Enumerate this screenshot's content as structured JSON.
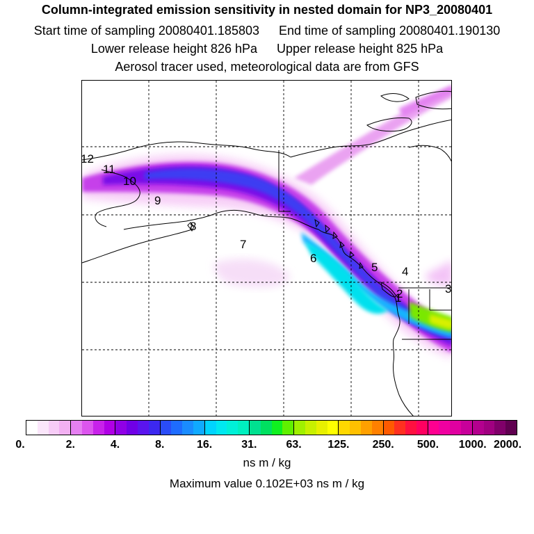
{
  "header": {
    "title": "Column-integrated emission sensitivity in nested domain for NP3_20080401",
    "start_label": "Start time of sampling 20080401.185803",
    "end_label": "End time of sampling 20080401.190130",
    "lower_label": "Lower release height  826 hPa",
    "upper_label": "Upper release height  825 hPa",
    "tracer_label": "Aerosol tracer used, meteorological data are from GFS"
  },
  "map": {
    "release_points": [
      "1",
      "2",
      "3",
      "4",
      "5",
      "6",
      "7",
      "8",
      "9",
      "10",
      "11",
      "12"
    ],
    "coastline_color": "#000000",
    "grid_style": "dashed"
  },
  "colorbar": {
    "labels": [
      "0.",
      "2.",
      "4.",
      "8.",
      "16.",
      "31.",
      "63.",
      "125.",
      "250.",
      "500.",
      "1000.",
      "2000."
    ],
    "colors": [
      "#ffffff",
      "#fbe6fb",
      "#f7ccf7",
      "#f2b0f2",
      "#e680f2",
      "#dc55ee",
      "#c822ea",
      "#b000e6",
      "#9000e6",
      "#7000e6",
      "#5a14ee",
      "#3c28f0",
      "#2a4cf8",
      "#1e6cff",
      "#1a8cff",
      "#10aaff",
      "#00d4ff",
      "#00e8f0",
      "#00f0d8",
      "#00f0c0",
      "#00e090",
      "#00e060",
      "#10f020",
      "#60f000",
      "#a0f000",
      "#c8f000",
      "#e8f000",
      "#ffff00",
      "#ffd800",
      "#ffc000",
      "#ffa000",
      "#ff8000",
      "#ff5a00",
      "#ff3020",
      "#ff1040",
      "#ff0060",
      "#ff0090",
      "#f000a0",
      "#e000a0",
      "#c8009a",
      "#b4008e",
      "#a00080",
      "#80006a",
      "#600050"
    ],
    "units": "ns m / kg",
    "max_value_label": "Maximum value  0.102E+03 ns m / kg"
  }
}
